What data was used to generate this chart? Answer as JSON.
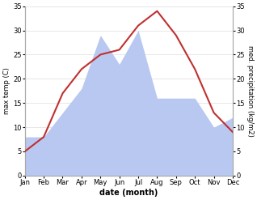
{
  "months": [
    "Jan",
    "Feb",
    "Mar",
    "Apr",
    "May",
    "Jun",
    "Jul",
    "Aug",
    "Sep",
    "Oct",
    "Nov",
    "Dec"
  ],
  "month_indices": [
    0,
    1,
    2,
    3,
    4,
    5,
    6,
    7,
    8,
    9,
    10,
    11
  ],
  "temperature": [
    5,
    8,
    17,
    22,
    25,
    26,
    31,
    34,
    29,
    22,
    13,
    9
  ],
  "precipitation": [
    8,
    8,
    13,
    18,
    29,
    23,
    30,
    16,
    16,
    16,
    10,
    12
  ],
  "temp_color": "#c03030",
  "precip_color": "#b8c8f0",
  "ylim": [
    0,
    35
  ],
  "yticks": [
    0,
    5,
    10,
    15,
    20,
    25,
    30,
    35
  ],
  "ylabel_left": "max temp (C)",
  "ylabel_right": "med. precipitation (kg/m2)",
  "xlabel": "date (month)",
  "background_color": "#ffffff",
  "spine_color": "#aaaaaa",
  "grid_color": "#dddddd"
}
